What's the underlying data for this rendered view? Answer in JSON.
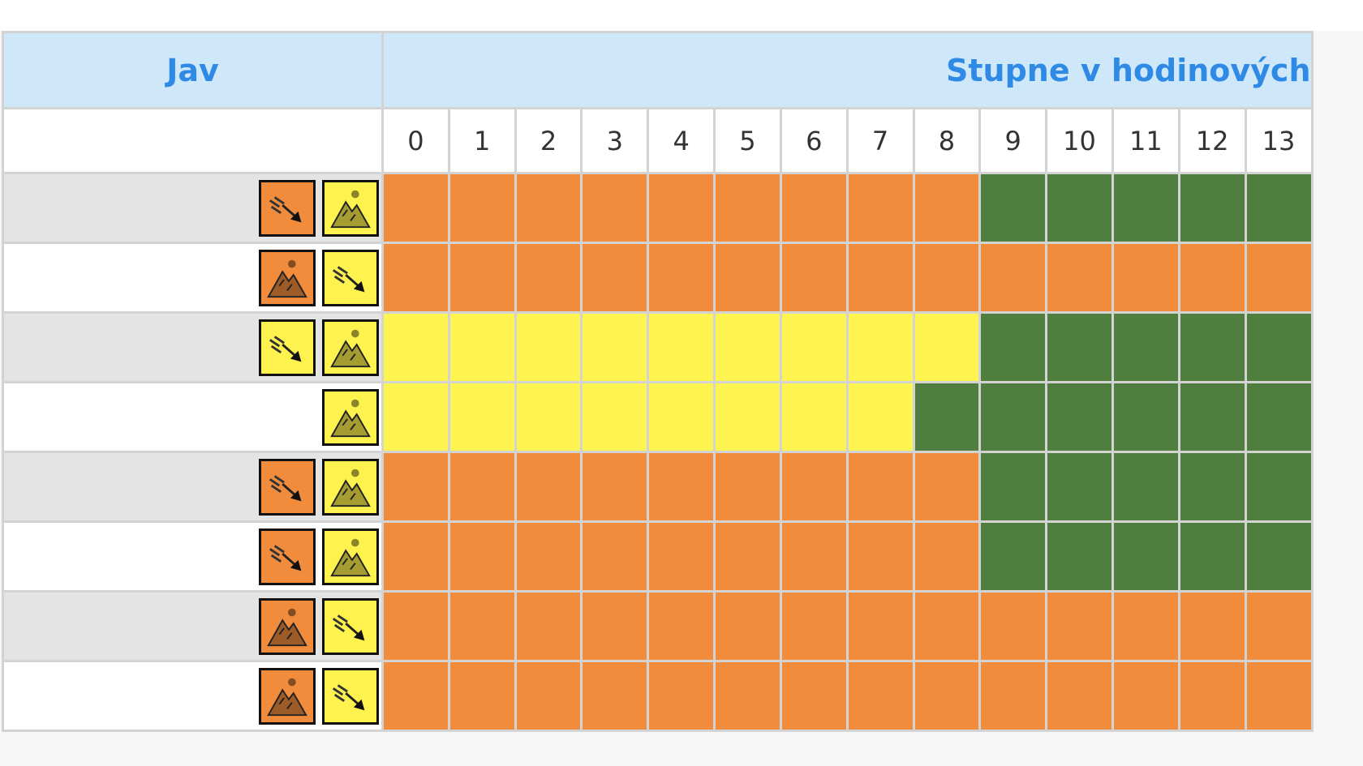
{
  "header": {
    "phenomenon": "Jav",
    "degrees": "Stupne v hodinových"
  },
  "hours": [
    "0",
    "1",
    "2",
    "3",
    "4",
    "5",
    "6",
    "7",
    "8",
    "9",
    "10",
    "11",
    "12",
    "13"
  ],
  "colors": {
    "orange": "#f08c3c",
    "yellow": "#fdf44f",
    "green": "#4f7e3f",
    "header_bg": "#cfe8f9",
    "header_text": "#2f8ae6"
  },
  "rows": [
    {
      "icons": [
        {
          "name": "snow-wind-icon",
          "level": "orange"
        },
        {
          "name": "avalanche-icon",
          "level": "yellow"
        }
      ],
      "cells": [
        "orange",
        "orange",
        "orange",
        "orange",
        "orange",
        "orange",
        "orange",
        "orange",
        "orange",
        "green",
        "green",
        "green",
        "green",
        "green"
      ]
    },
    {
      "icons": [
        {
          "name": "avalanche-icon",
          "level": "orange"
        },
        {
          "name": "snow-wind-icon",
          "level": "yellow"
        }
      ],
      "cells": [
        "orange",
        "orange",
        "orange",
        "orange",
        "orange",
        "orange",
        "orange",
        "orange",
        "orange",
        "orange",
        "orange",
        "orange",
        "orange",
        "orange"
      ]
    },
    {
      "icons": [
        {
          "name": "snow-wind-icon",
          "level": "yellow"
        },
        {
          "name": "avalanche-icon",
          "level": "yellow"
        }
      ],
      "cells": [
        "yellow",
        "yellow",
        "yellow",
        "yellow",
        "yellow",
        "yellow",
        "yellow",
        "yellow",
        "yellow",
        "green",
        "green",
        "green",
        "green",
        "green"
      ]
    },
    {
      "icons": [
        {
          "name": "avalanche-icon",
          "level": "yellow"
        }
      ],
      "cells": [
        "yellow",
        "yellow",
        "yellow",
        "yellow",
        "yellow",
        "yellow",
        "yellow",
        "yellow",
        "green",
        "green",
        "green",
        "green",
        "green",
        "green"
      ]
    },
    {
      "icons": [
        {
          "name": "snow-wind-icon",
          "level": "orange"
        },
        {
          "name": "avalanche-icon",
          "level": "yellow"
        }
      ],
      "cells": [
        "orange",
        "orange",
        "orange",
        "orange",
        "orange",
        "orange",
        "orange",
        "orange",
        "orange",
        "green",
        "green",
        "green",
        "green",
        "green"
      ]
    },
    {
      "icons": [
        {
          "name": "snow-wind-icon",
          "level": "orange"
        },
        {
          "name": "avalanche-icon",
          "level": "yellow"
        }
      ],
      "cells": [
        "orange",
        "orange",
        "orange",
        "orange",
        "orange",
        "orange",
        "orange",
        "orange",
        "orange",
        "green",
        "green",
        "green",
        "green",
        "green"
      ]
    },
    {
      "icons": [
        {
          "name": "avalanche-icon",
          "level": "orange"
        },
        {
          "name": "snow-wind-icon",
          "level": "yellow"
        }
      ],
      "cells": [
        "orange",
        "orange",
        "orange",
        "orange",
        "orange",
        "orange",
        "orange",
        "orange",
        "orange",
        "orange",
        "orange",
        "orange",
        "orange",
        "orange"
      ]
    },
    {
      "icons": [
        {
          "name": "avalanche-icon",
          "level": "orange"
        },
        {
          "name": "snow-wind-icon",
          "level": "yellow"
        }
      ],
      "cells": [
        "orange",
        "orange",
        "orange",
        "orange",
        "orange",
        "orange",
        "orange",
        "orange",
        "orange",
        "orange",
        "orange",
        "orange",
        "orange",
        "orange"
      ]
    }
  ]
}
